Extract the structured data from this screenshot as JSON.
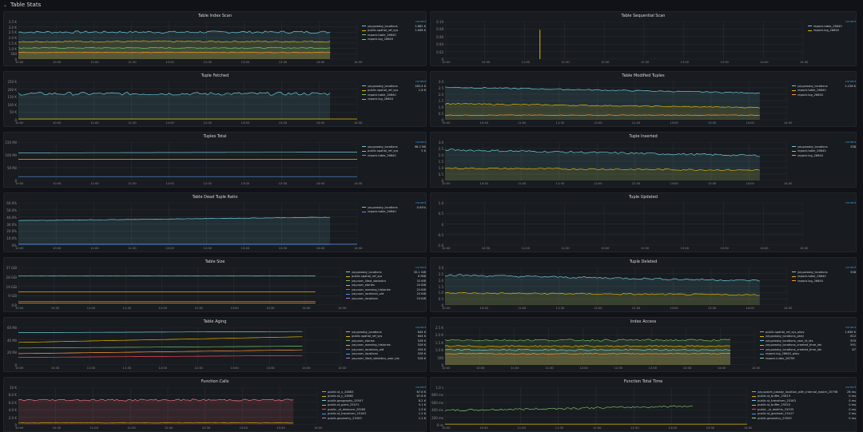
{
  "section": {
    "title": "Table Stats"
  },
  "colors": {
    "green": "#73bf69",
    "yellow": "#e0b400",
    "blue": "#5794f2",
    "teal": "#8ab8ff",
    "orange": "#ff9830",
    "red": "#f2495c",
    "purple": "#b877d9",
    "cyan": "#6ccadc",
    "pink": "#ff7383",
    "lime": "#96d98d"
  },
  "panels": [
    {
      "id": "p1",
      "title": "Table Index Scan",
      "y_ticks": [
        "3.5 K",
        "3.0 K",
        "2.5 K",
        "2.0 K",
        "1.5 K",
        "1.0 K",
        "500",
        "0"
      ],
      "x_ticks": [
        "10:00",
        "10:30",
        "11:00",
        "11:30",
        "12:00",
        "12:30",
        "13:00",
        "13:30",
        "14:00",
        "14:30"
      ],
      "legend_head": "current",
      "legend": [
        {
          "name": "yay.passby_locations",
          "value": "1.882 K"
        },
        {
          "name": "public.spatial_ref_sys",
          "value": "1.638 K"
        },
        {
          "name": "repack.table_26640",
          "value": ""
        },
        {
          "name": "repack.log_26640",
          "value": ""
        }
      ]
    },
    {
      "id": "p2",
      "title": "Table Sequential Scan",
      "y_ticks": [
        "0.10",
        "0.08",
        "0.06",
        "0.04",
        "0.02",
        "0"
      ],
      "x_ticks": [
        "10:00",
        "10:30",
        "11:00",
        "11:30",
        "12:00",
        "12:30",
        "13:00",
        "13:30",
        "14:00",
        "14:30"
      ],
      "legend_head": "current",
      "legend": [
        {
          "name": "repack.table_26640",
          "value": ""
        },
        {
          "name": "repack.log_26640",
          "value": ""
        }
      ]
    },
    {
      "id": "p3",
      "title": "Tuple Fetched",
      "y_ticks": [
        "250 K",
        "200 K",
        "150 K",
        "100 K",
        "50 K",
        "0"
      ],
      "x_ticks": [
        "10:00",
        "10:30",
        "11:00",
        "11:30",
        "12:00",
        "12:30",
        "13:00",
        "13:30",
        "14:00",
        "14:30"
      ],
      "legend_head": "current",
      "legend": [
        {
          "name": "yay.passby_locations",
          "value": "183.4 K"
        },
        {
          "name": "public.spatial_ref_sys",
          "value": "1.6 K"
        },
        {
          "name": "repack.table_26640",
          "value": ""
        },
        {
          "name": "repack.log_26640",
          "value": ""
        }
      ]
    },
    {
      "id": "p4",
      "title": "Table Modified Tuples",
      "y_ticks": [
        "3.0",
        "2.5",
        "2.0",
        "1.5",
        "1.0",
        "0.5",
        "0"
      ],
      "x_ticks": [
        "10:00",
        "10:30",
        "11:00",
        "11:30",
        "12:00",
        "12:30",
        "13:00",
        "13:30",
        "14:00",
        "14:30"
      ],
      "legend_head": "current",
      "legend": [
        {
          "name": "yay.passby_locations",
          "value": "1.156 K"
        },
        {
          "name": "repack.table_26640",
          "value": ""
        },
        {
          "name": "repack.log_26640",
          "value": ""
        }
      ]
    },
    {
      "id": "p5",
      "title": "Tuples Total",
      "y_ticks": [
        "150 Mil",
        "100 Mil",
        "50 Mil",
        "0"
      ],
      "x_ticks": [
        "10:00",
        "10:30",
        "11:00",
        "11:30",
        "12:00",
        "12:30",
        "13:00",
        "13:30",
        "14:00",
        "14:30"
      ],
      "legend_head": "current",
      "legend": [
        {
          "name": "yay.passby_locations",
          "value": "98.2 Mil"
        },
        {
          "name": "public.spatial_ref_sys",
          "value": "5 K"
        },
        {
          "name": "repack.table_26640",
          "value": ""
        }
      ]
    },
    {
      "id": "p6",
      "title": "Tuple Inserted",
      "y_ticks": [
        "3.0",
        "2.5",
        "2.0",
        "1.5",
        "1.0",
        "0.5",
        "0"
      ],
      "x_ticks": [
        "10:00",
        "10:30",
        "11:00",
        "11:30",
        "12:00",
        "12:30",
        "13:00",
        "13:30",
        "14:00",
        "14:30"
      ],
      "legend_head": "current",
      "legend": [
        {
          "name": "yay.passby_locations",
          "value": "338"
        },
        {
          "name": "repack.table_26640",
          "value": ""
        },
        {
          "name": "repack.log_26640",
          "value": ""
        }
      ]
    },
    {
      "id": "p7",
      "title": "Table Dead Tuple Ratio",
      "y_ticks": [
        "60.0%",
        "50.0%",
        "40.0%",
        "30.0%",
        "20.0%",
        "10.0%",
        "0%"
      ],
      "x_ticks": [
        "10:00",
        "10:30",
        "11:00",
        "11:30",
        "12:00",
        "12:30",
        "13:00",
        "13:30",
        "14:00",
        "14:30"
      ],
      "legend_head": "current",
      "legend": [
        {
          "name": "yay.passby_locations",
          "value": "0.04%"
        },
        {
          "name": "repack.table_26640",
          "value": ""
        }
      ]
    },
    {
      "id": "p8",
      "title": "Tuple Updated",
      "y_ticks": [
        "1.0",
        "0.5",
        "0",
        "-0.5",
        "-1.0"
      ],
      "x_ticks": [
        "10:00",
        "10:30",
        "11:00",
        "11:30",
        "12:00",
        "12:30",
        "13:00",
        "13:30",
        "14:00",
        "14:30"
      ],
      "legend_head": "current",
      "legend": []
    },
    {
      "id": "p9",
      "title": "Table Size",
      "y_ticks": [
        "37 GiB",
        "28 GiB",
        "19 GiB",
        "9 GiB",
        "0 B"
      ],
      "x_ticks": [
        "10:00",
        "10:30",
        "11:00",
        "11:30",
        "12:00",
        "12:30",
        "13:00",
        "13:30",
        "14:00",
        "14:30"
      ],
      "legend_head": "current",
      "legend": [
        {
          "name": "yay.passby_locations",
          "value": "30.1 GiB"
        },
        {
          "name": "public.spatial_ref_sys",
          "value": "6 MiB"
        },
        {
          "name": "yay.user_liked_statistics",
          "value": "32 KiB"
        },
        {
          "name": "yay.user_stories",
          "value": "24 KiB"
        },
        {
          "name": "yay.user_roaming_histories",
          "value": "24 KiB"
        },
        {
          "name": "yay.user_locations_old",
          "value": "24 KiB"
        },
        {
          "name": "yay.user_locations",
          "value": "24 KiB"
        }
      ]
    },
    {
      "id": "p10",
      "title": "Tuple Deleted",
      "y_ticks": [
        "3.0",
        "2.5",
        "2.0",
        "1.5",
        "1.0",
        "0.5",
        "0"
      ],
      "x_ticks": [
        "10:00",
        "10:30",
        "11:00",
        "11:30",
        "12:00",
        "12:30",
        "13:00",
        "13:30",
        "14:00",
        "14:30"
      ],
      "legend_head": "current",
      "legend": [
        {
          "name": "yay.passby_locations",
          "value": "338"
        },
        {
          "name": "repack.table_26640",
          "value": ""
        },
        {
          "name": "repack.log_26640",
          "value": ""
        }
      ]
    },
    {
      "id": "p11",
      "title": "Table Aging",
      "y_ticks": [
        "60 Mil",
        "40 Mil",
        "20 Mil",
        "0"
      ],
      "x_ticks": [
        "10:00",
        "10:30",
        "11:00",
        "11:30",
        "12:00",
        "12:30",
        "13:00",
        "13:30",
        "14:00",
        "14:30"
      ],
      "legend_head": "current",
      "legend": [
        {
          "name": "yay.passby_locations",
          "value": "644 K"
        },
        {
          "name": "public.spatial_ref_sys",
          "value": "644 K"
        },
        {
          "name": "yay.user_stories",
          "value": "526 K"
        },
        {
          "name": "yay.user_roaming_histories",
          "value": "526 K"
        },
        {
          "name": "yay.user_locations_old",
          "value": "526 K"
        },
        {
          "name": "yay.user_locations",
          "value": "526 K"
        },
        {
          "name": "yay.user_liked_statistics_user_ids",
          "value": "526 K"
        }
      ]
    },
    {
      "id": "p12",
      "title": "Index Access",
      "y_ticks": [
        "2.5 K",
        "2.0 K",
        "1.5 K",
        "1.0 K",
        "500",
        "0"
      ],
      "x_ticks": [
        "10:00",
        "10:30",
        "11:00",
        "11:30",
        "12:00",
        "12:30",
        "13:00",
        "13:30",
        "14:00",
        "14:30"
      ],
      "legend_head": "current",
      "legend": [
        {
          "name": "public.spatial_ref_sys_pkey",
          "value": "1.638 K"
        },
        {
          "name": "yay.passby_locations_pkey",
          "value": "612"
        },
        {
          "name": "yay.passby_locations_user_id_idx",
          "value": "593"
        },
        {
          "name": "yay.passby_locations_created_time_idx",
          "value": "591"
        },
        {
          "name": "yay.passby_locations_created_time_idx",
          "value": "87"
        },
        {
          "name": "repack.log_26640_pkey",
          "value": ""
        },
        {
          "name": "repack.index_26799",
          "value": ""
        }
      ]
    },
    {
      "id": "p13",
      "title": "Function Calls",
      "y_ticks": [
        "10 K",
        "8.0 K",
        "6.0 K",
        "4.0 K",
        "2.0 K",
        "0"
      ],
      "x_ticks": [
        "10:00",
        "10:30",
        "11:00",
        "11:30",
        "12:00",
        "12:30",
        "13:00",
        "13:30",
        "14:00"
      ],
      "legend_head": "current",
      "legend": [
        {
          "name": "public.st_x_24863",
          "value": "67.6 K"
        },
        {
          "name": "public.st_y_24862",
          "value": "67.6 K"
        },
        {
          "name": "public.geography_25507",
          "value": "8.2 K"
        },
        {
          "name": "public.st_point_25471",
          "value": "5.1 K"
        },
        {
          "name": "public._st_distance_25585",
          "value": "2.9 K"
        },
        {
          "name": "public.st_transform_25163",
          "value": "1.2 K"
        },
        {
          "name": "public.geometry_25509",
          "value": "1.2 K"
        }
      ]
    },
    {
      "id": "p14",
      "title": "Function Total Time",
      "y_ticks": [
        "1.0 s",
        "800 ms",
        "600 ms",
        "400 ms",
        "200 ms",
        "0 ns"
      ],
      "x_ticks": [
        "10:00",
        "10:30",
        "11:00",
        "11:30",
        "12:00",
        "12:30",
        "13:00",
        "13:30",
        "14:00"
      ],
      "legend_head": "current",
      "legend": [
        {
          "name": "yay.upsert_passby_location_with_interval_expire_25798",
          "value": "28 ms"
        },
        {
          "name": "public.st_buffer_25619",
          "value": "0 ms"
        },
        {
          "name": "public.st_transform_25163",
          "value": "0 ms"
        },
        {
          "name": "public.st_buffer_25520",
          "value": "0 ms"
        },
        {
          "name": "public._st_dwithin_25535",
          "value": "0 ms"
        },
        {
          "name": "public.st_geohash_25417",
          "value": "0 ms"
        },
        {
          "name": "public.geometry_25509",
          "value": "0 ms"
        }
      ]
    }
  ]
}
